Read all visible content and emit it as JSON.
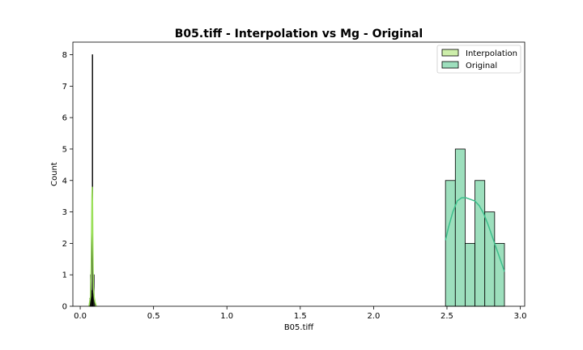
{
  "chart_data": {
    "type": "histogram",
    "title": "B05.tiff - Interpolation vs Mg - Original",
    "xlabel": "B05.tiff",
    "ylabel": "Count",
    "xlim": [
      -0.05,
      3.03
    ],
    "ylim": [
      0,
      8.4
    ],
    "x_ticks": [
      0.0,
      0.5,
      1.0,
      1.5,
      2.0,
      2.5,
      3.0
    ],
    "x_tick_labels": [
      "0.0",
      "0.5",
      "1.0",
      "1.5",
      "2.0",
      "2.5",
      "3.0"
    ],
    "y_ticks": [
      0,
      1,
      2,
      3,
      4,
      5,
      6,
      7,
      8
    ],
    "y_tick_labels": [
      "0",
      "1",
      "2",
      "3",
      "4",
      "5",
      "6",
      "7",
      "8"
    ],
    "grid": false,
    "legend_position": "top-right",
    "legend": [
      "Interpolation",
      "Original"
    ],
    "series": [
      {
        "name": "Interpolation",
        "color": "#cdeeaa",
        "kde_color": "#9be05a",
        "bins": [
          {
            "x0": 0.065,
            "x1": 0.07,
            "count": 0.25
          },
          {
            "x0": 0.07,
            "x1": 0.075,
            "count": 1
          },
          {
            "x0": 0.075,
            "x1": 0.08,
            "count": 0.3
          },
          {
            "x0": 0.08,
            "x1": 0.082,
            "count": 0.5
          },
          {
            "x0": 0.082,
            "x1": 0.084,
            "count": 8
          },
          {
            "x0": 0.084,
            "x1": 0.086,
            "count": 0.4
          },
          {
            "x0": 0.086,
            "x1": 0.09,
            "count": 0.25
          },
          {
            "x0": 0.09,
            "x1": 0.095,
            "count": 1
          },
          {
            "x0": 0.095,
            "x1": 0.1,
            "count": 0.2
          }
        ],
        "kde": {
          "x": [
            0.06,
            0.07,
            0.075,
            0.078,
            0.08,
            0.082,
            0.084,
            0.086,
            0.088,
            0.09,
            0.095,
            0.1,
            0.11
          ],
          "y": [
            0.0,
            0.3,
            1.2,
            2.6,
            3.5,
            3.8,
            3.3,
            2.2,
            1.2,
            0.6,
            0.3,
            0.15,
            0.0
          ]
        }
      },
      {
        "name": "Original",
        "color": "#9ddfbd",
        "kde_color": "#3dbf8c",
        "bins": [
          {
            "x0": 2.49,
            "x1": 2.557,
            "count": 4
          },
          {
            "x0": 2.557,
            "x1": 2.624,
            "count": 5
          },
          {
            "x0": 2.624,
            "x1": 2.691,
            "count": 2
          },
          {
            "x0": 2.691,
            "x1": 2.758,
            "count": 4
          },
          {
            "x0": 2.758,
            "x1": 2.825,
            "count": 3
          },
          {
            "x0": 2.825,
            "x1": 2.892,
            "count": 2
          }
        ],
        "kde": {
          "x": [
            2.49,
            2.51,
            2.54,
            2.57,
            2.6,
            2.63,
            2.66,
            2.69,
            2.72,
            2.75,
            2.78,
            2.81,
            2.84,
            2.87,
            2.892
          ],
          "y": [
            2.1,
            2.5,
            3.0,
            3.35,
            3.45,
            3.45,
            3.4,
            3.35,
            3.2,
            2.95,
            2.6,
            2.2,
            1.8,
            1.4,
            1.1
          ]
        }
      }
    ]
  }
}
